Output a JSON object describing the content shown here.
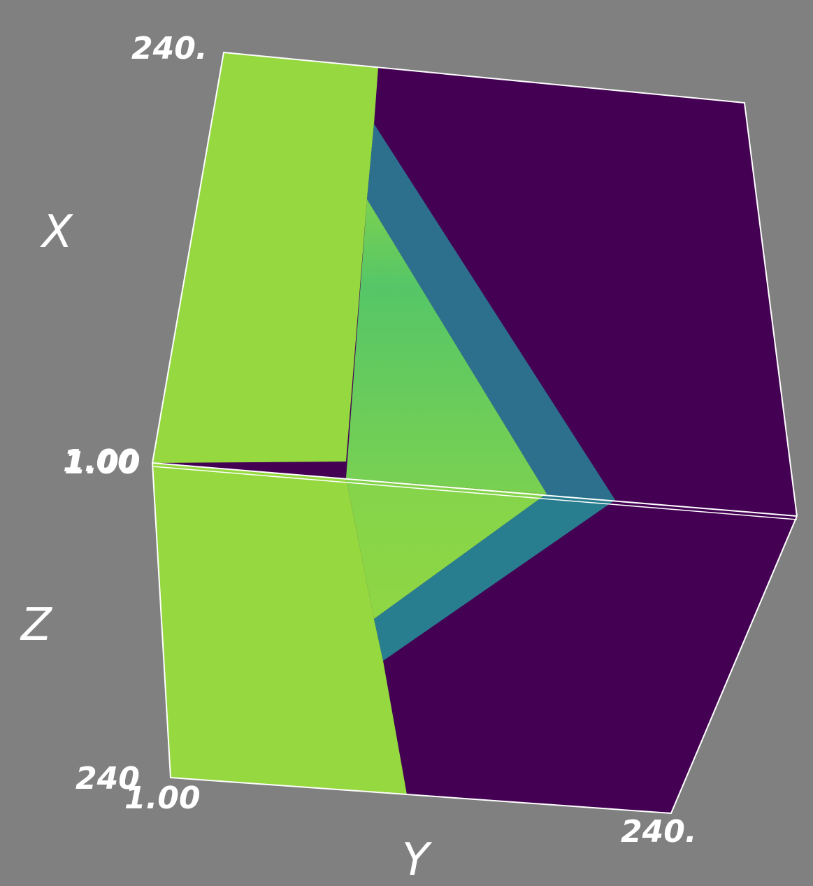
{
  "viewer": {
    "background": "#808080",
    "colormap": "viridis",
    "colors": {
      "high": "#95d840",
      "mid_high": "#55c667",
      "mid": "#2a788e",
      "low": "#440154",
      "edge": "#ffffff"
    }
  },
  "axes": {
    "x": {
      "title": "X",
      "tick_min": "1.00",
      "tick_max": "240."
    },
    "y": {
      "title": "Y",
      "tick_min": "1.00",
      "tick_max": "240."
    },
    "z": {
      "title": "Z",
      "tick_min": "1.00",
      "tick_max": "240"
    }
  }
}
